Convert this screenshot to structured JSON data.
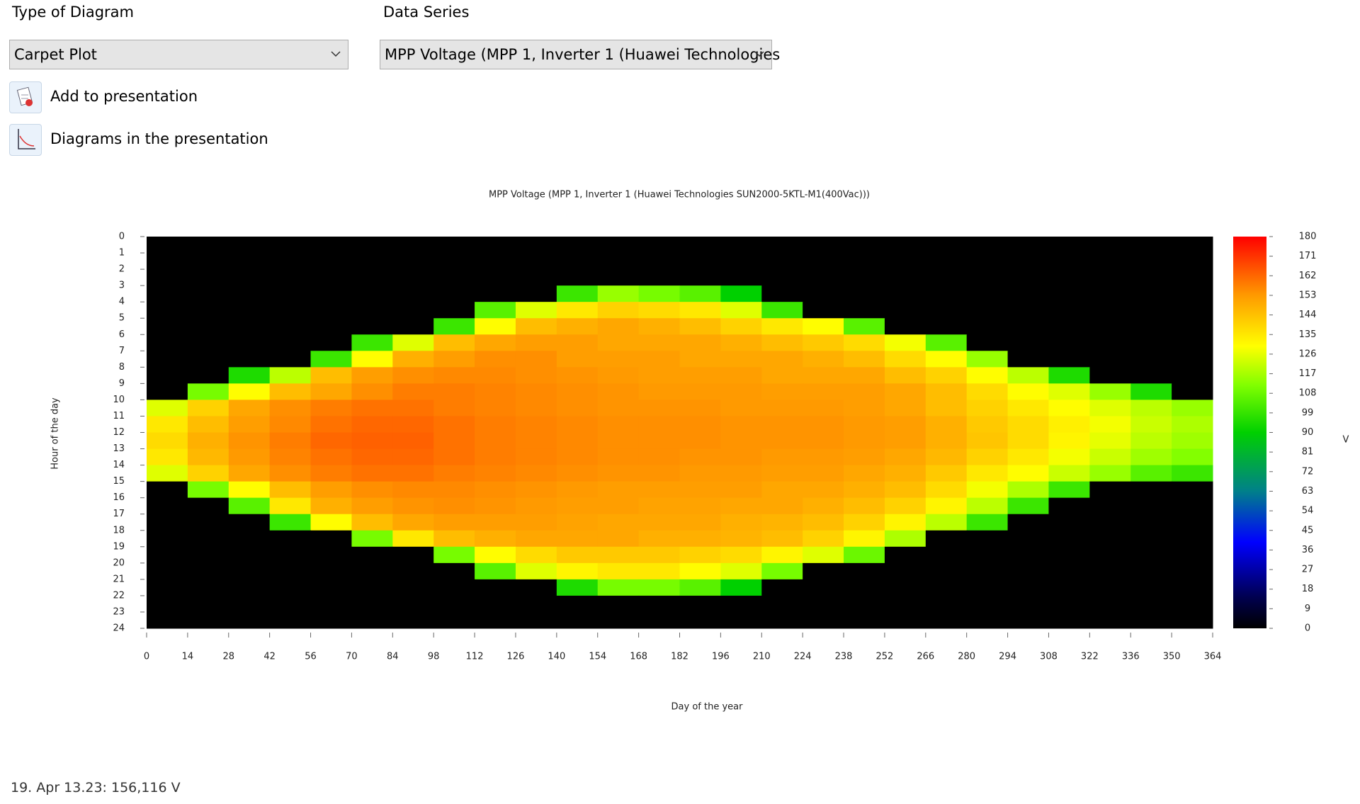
{
  "controls": {
    "diagram_type_label": "Type of Diagram",
    "diagram_type": "Carpet Plot",
    "data_series_label": "Data Series",
    "data_series": "MPP Voltage (MPP 1, Inverter 1 (Huawei Technologies",
    "add_button": "Add to presentation",
    "diagrams_button": "Diagrams in the presentation"
  },
  "chart_data": {
    "type": "heatmap",
    "title": "MPP Voltage (MPP 1, Inverter 1 (Huawei Technologies SUN2000-5KTL-M1(400Vac)))",
    "xlabel": "Day of the year",
    "ylabel": "Hour of the day",
    "xlim": [
      0,
      364
    ],
    "xticks": [
      0,
      14,
      28,
      42,
      56,
      70,
      84,
      98,
      112,
      126,
      140,
      154,
      168,
      182,
      196,
      210,
      224,
      238,
      252,
      266,
      280,
      294,
      308,
      322,
      336,
      350,
      364
    ],
    "ylim": [
      0,
      24
    ],
    "y_inverted": true,
    "yticks": [
      0,
      1,
      2,
      3,
      4,
      5,
      6,
      7,
      8,
      9,
      10,
      11,
      12,
      13,
      14,
      15,
      16,
      17,
      18,
      19,
      20,
      21,
      22,
      23,
      24
    ],
    "clim": [
      0,
      180
    ],
    "cticks": [
      0,
      9,
      18,
      27,
      36,
      45,
      54,
      63,
      72,
      81,
      90,
      99,
      108,
      117,
      126,
      135,
      144,
      153,
      162,
      171,
      180
    ],
    "colorbar_label": "V",
    "colorscale": [
      [
        0,
        "#000000"
      ],
      [
        0.08,
        "#000050"
      ],
      [
        0.22,
        "#0000ff"
      ],
      [
        0.35,
        "#00808a"
      ],
      [
        0.5,
        "#00d000"
      ],
      [
        0.62,
        "#80ff00"
      ],
      [
        0.72,
        "#ffff00"
      ],
      [
        0.85,
        "#ff9a00"
      ],
      [
        1,
        "#ff0000"
      ]
    ],
    "values": [
      [
        0,
        0,
        0,
        0,
        0,
        0,
        0,
        0,
        0,
        0,
        0,
        0,
        0,
        0,
        0,
        0,
        0,
        0,
        0,
        0,
        0,
        0,
        0,
        0,
        0,
        0
      ],
      [
        0,
        0,
        0,
        0,
        0,
        0,
        0,
        0,
        0,
        0,
        0,
        0,
        0,
        0,
        0,
        0,
        0,
        0,
        0,
        0,
        0,
        0,
        0,
        0,
        0,
        0
      ],
      [
        0,
        0,
        0,
        0,
        0,
        0,
        0,
        0,
        0,
        0,
        0,
        0,
        0,
        0,
        0,
        0,
        0,
        0,
        0,
        0,
        0,
        0,
        0,
        0,
        0,
        0
      ],
      [
        0,
        0,
        0,
        0,
        0,
        0,
        0,
        0,
        0,
        0,
        100,
        115,
        110,
        105,
        90,
        0,
        0,
        0,
        0,
        0,
        0,
        0,
        0,
        0,
        0,
        0
      ],
      [
        0,
        0,
        0,
        0,
        0,
        0,
        0,
        0,
        105,
        125,
        135,
        140,
        138,
        135,
        125,
        100,
        0,
        0,
        0,
        0,
        0,
        0,
        0,
        0,
        0,
        0
      ],
      [
        0,
        0,
        0,
        0,
        0,
        0,
        0,
        100,
        130,
        145,
        148,
        150,
        148,
        145,
        140,
        135,
        130,
        105,
        0,
        0,
        0,
        0,
        0,
        0,
        0,
        0
      ],
      [
        0,
        0,
        0,
        0,
        0,
        100,
        125,
        145,
        150,
        152,
        152,
        150,
        150,
        150,
        148,
        145,
        142,
        138,
        128,
        105,
        0,
        0,
        0,
        0,
        0,
        0
      ],
      [
        0,
        0,
        0,
        0,
        100,
        130,
        148,
        152,
        155,
        155,
        152,
        152,
        152,
        150,
        150,
        150,
        148,
        145,
        138,
        130,
        115,
        0,
        0,
        0,
        0,
        0
      ],
      [
        0,
        0,
        95,
        120,
        145,
        152,
        155,
        156,
        156,
        155,
        154,
        153,
        152,
        152,
        152,
        150,
        150,
        150,
        145,
        140,
        130,
        120,
        95,
        0,
        0,
        0
      ],
      [
        0,
        110,
        130,
        145,
        150,
        155,
        158,
        158,
        157,
        156,
        155,
        154,
        153,
        153,
        153,
        152,
        152,
        152,
        150,
        145,
        138,
        130,
        125,
        115,
        95,
        0
      ],
      [
        125,
        140,
        150,
        155,
        158,
        160,
        160,
        158,
        157,
        156,
        155,
        154,
        154,
        154,
        153,
        153,
        153,
        152,
        150,
        145,
        140,
        135,
        130,
        125,
        120,
        115
      ],
      [
        135,
        145,
        152,
        156,
        160,
        162,
        162,
        160,
        158,
        157,
        156,
        155,
        155,
        155,
        154,
        154,
        154,
        153,
        152,
        148,
        142,
        138,
        133,
        128,
        122,
        118
      ],
      [
        138,
        148,
        154,
        158,
        162,
        163,
        163,
        160,
        158,
        157,
        156,
        155,
        155,
        155,
        154,
        154,
        154,
        153,
        152,
        148,
        143,
        138,
        132,
        126,
        120,
        116
      ],
      [
        135,
        146,
        153,
        157,
        160,
        162,
        162,
        160,
        158,
        157,
        156,
        155,
        155,
        154,
        154,
        153,
        153,
        152,
        150,
        146,
        140,
        135,
        128,
        122,
        116,
        112
      ],
      [
        125,
        140,
        150,
        155,
        158,
        160,
        160,
        158,
        157,
        156,
        155,
        154,
        154,
        153,
        153,
        152,
        152,
        150,
        148,
        142,
        135,
        130,
        122,
        115,
        105,
        100
      ],
      [
        0,
        110,
        130,
        145,
        152,
        155,
        156,
        156,
        155,
        154,
        153,
        152,
        152,
        152,
        152,
        150,
        150,
        148,
        145,
        138,
        128,
        118,
        100,
        0,
        0,
        0
      ],
      [
        0,
        0,
        105,
        135,
        148,
        152,
        154,
        155,
        154,
        153,
        152,
        152,
        151,
        151,
        150,
        150,
        148,
        145,
        140,
        132,
        120,
        100,
        0,
        0,
        0,
        0
      ],
      [
        0,
        0,
        0,
        100,
        130,
        145,
        150,
        152,
        152,
        152,
        151,
        150,
        150,
        150,
        148,
        147,
        145,
        140,
        132,
        120,
        100,
        0,
        0,
        0,
        0,
        0
      ],
      [
        0,
        0,
        0,
        0,
        0,
        110,
        135,
        145,
        148,
        150,
        150,
        150,
        148,
        148,
        147,
        145,
        140,
        132,
        118,
        0,
        0,
        0,
        0,
        0,
        0,
        0
      ],
      [
        0,
        0,
        0,
        0,
        0,
        0,
        0,
        110,
        130,
        138,
        142,
        142,
        142,
        140,
        138,
        132,
        125,
        108,
        0,
        0,
        0,
        0,
        0,
        0,
        0,
        0
      ],
      [
        0,
        0,
        0,
        0,
        0,
        0,
        0,
        0,
        105,
        125,
        132,
        135,
        135,
        130,
        125,
        110,
        0,
        0,
        0,
        0,
        0,
        0,
        0,
        0,
        0,
        0
      ],
      [
        0,
        0,
        0,
        0,
        0,
        0,
        0,
        0,
        0,
        0,
        95,
        110,
        110,
        105,
        90,
        0,
        0,
        0,
        0,
        0,
        0,
        0,
        0,
        0,
        0,
        0
      ],
      [
        0,
        0,
        0,
        0,
        0,
        0,
        0,
        0,
        0,
        0,
        0,
        0,
        0,
        0,
        0,
        0,
        0,
        0,
        0,
        0,
        0,
        0,
        0,
        0,
        0,
        0
      ],
      [
        0,
        0,
        0,
        0,
        0,
        0,
        0,
        0,
        0,
        0,
        0,
        0,
        0,
        0,
        0,
        0,
        0,
        0,
        0,
        0,
        0,
        0,
        0,
        0,
        0,
        0
      ]
    ]
  },
  "status": "19. Apr 13.23: 156,116 V"
}
